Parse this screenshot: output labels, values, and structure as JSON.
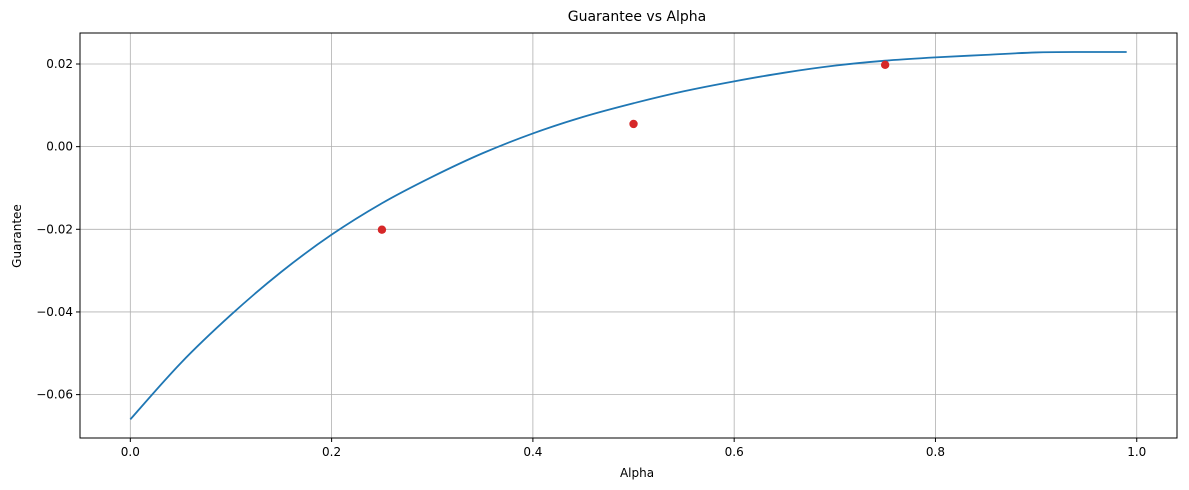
{
  "chart_data": {
    "type": "line",
    "title": "Guarantee vs Alpha",
    "xlabel": "Alpha",
    "ylabel": "Guarantee",
    "xlim": [
      -0.05,
      1.04
    ],
    "ylim": [
      -0.0705,
      0.0275
    ],
    "grid": true,
    "x_ticks": [
      0.0,
      0.2,
      0.4,
      0.6,
      0.8,
      1.0
    ],
    "x_tick_labels": [
      "0.0",
      "0.2",
      "0.4",
      "0.6",
      "0.8",
      "1.0"
    ],
    "y_ticks": [
      -0.06,
      -0.04,
      -0.02,
      0.0,
      0.02
    ],
    "y_tick_labels": [
      "−0.06",
      "−0.04",
      "−0.02",
      "0.00",
      "0.02"
    ],
    "series": [
      {
        "kind": "line",
        "color": "#1f77b4",
        "x": [
          0.0,
          0.05,
          0.1,
          0.15,
          0.2,
          0.25,
          0.3,
          0.35,
          0.4,
          0.45,
          0.5,
          0.55,
          0.6,
          0.65,
          0.7,
          0.75,
          0.8,
          0.85,
          0.9,
          0.95,
          0.99
        ],
        "y": [
          -0.066,
          -0.0524,
          -0.0407,
          -0.0303,
          -0.0213,
          -0.0137,
          -0.0073,
          -0.0016,
          0.0032,
          0.0072,
          0.0105,
          0.0134,
          0.0158,
          0.0179,
          0.0196,
          0.0208,
          0.0216,
          0.0222,
          0.0228,
          0.0229,
          0.0229
        ]
      },
      {
        "kind": "scatter",
        "color": "#d62728",
        "x": [
          0.25,
          0.5,
          0.75
        ],
        "y": [
          -0.0201,
          0.0055,
          0.0198
        ]
      }
    ]
  }
}
